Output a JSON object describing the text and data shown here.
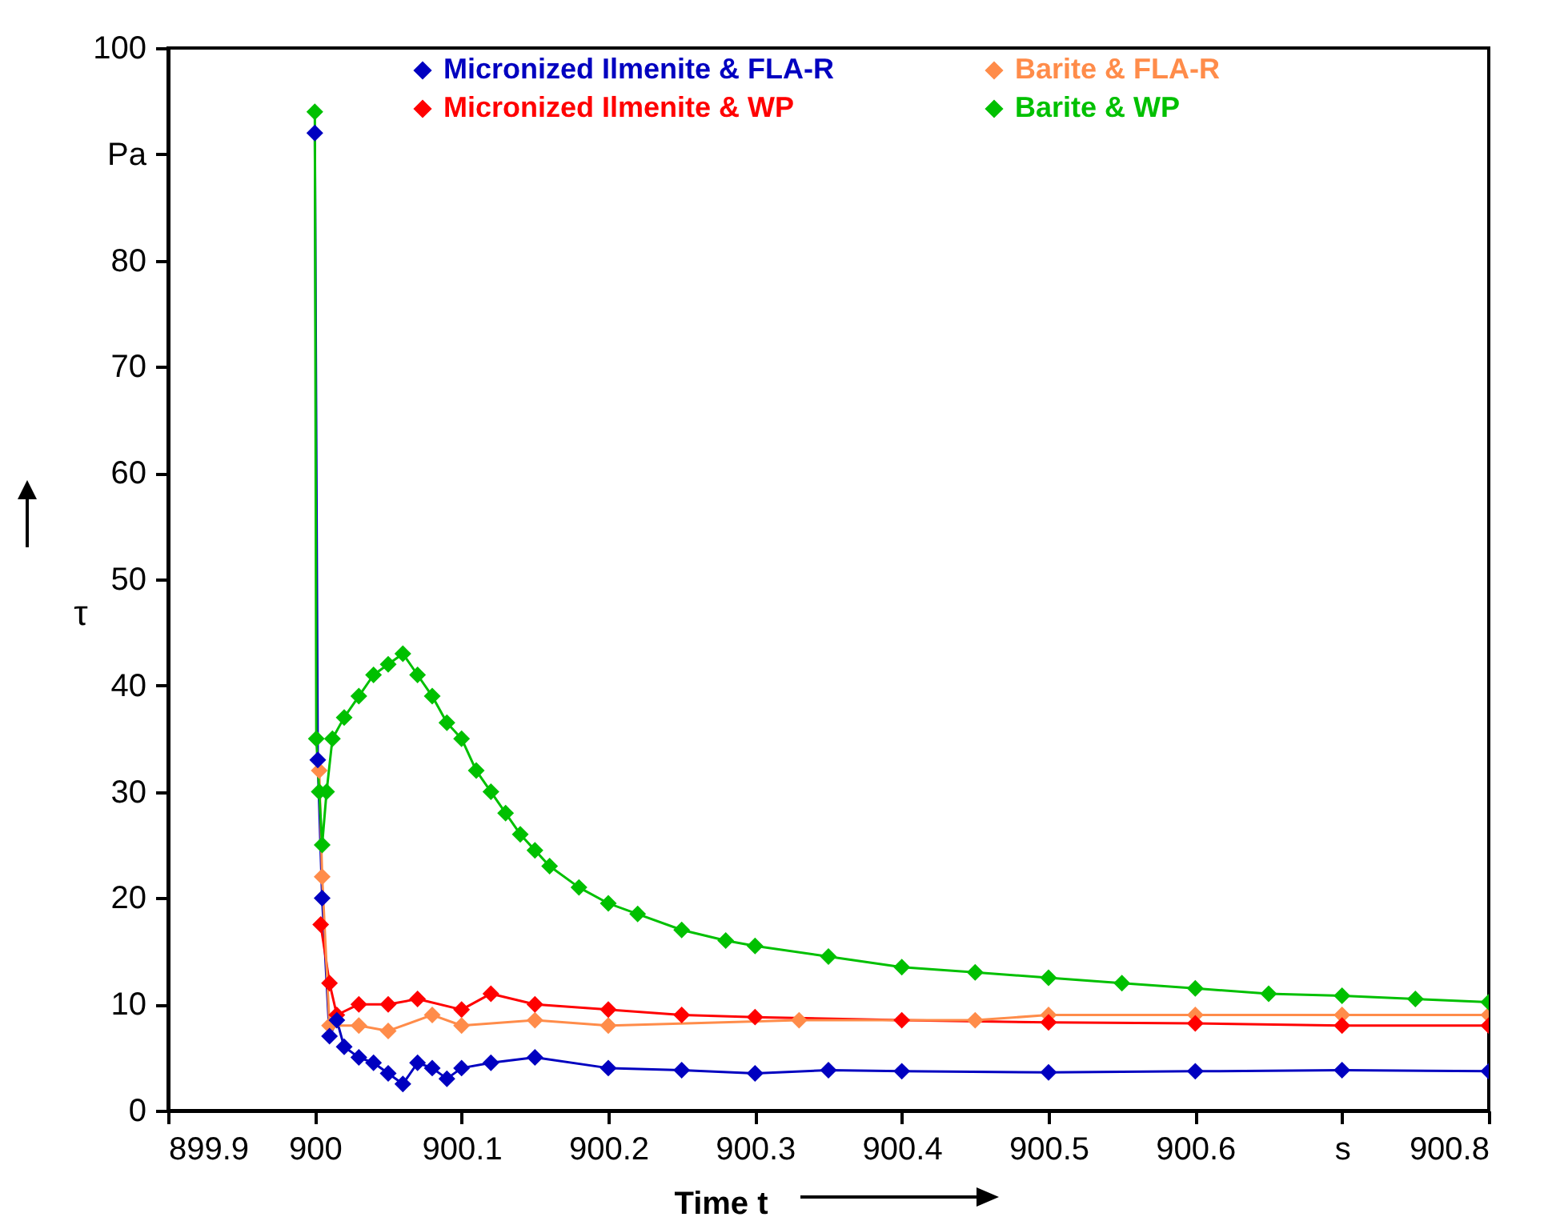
{
  "chart_data": {
    "type": "line",
    "xlabel": "Time t",
    "ylabel": "τ",
    "xlim": [
      899.9,
      900.8
    ],
    "ylim": [
      0,
      100
    ],
    "xticks": [
      899.9,
      900,
      900.1,
      900.2,
      900.3,
      900.4,
      900.5,
      900.6,
      {
        "value": 900.7,
        "label": "s"
      },
      900.8
    ],
    "yticks": [
      0,
      10,
      20,
      30,
      40,
      50,
      60,
      70,
      80,
      {
        "value": 90,
        "label": "Pa"
      },
      100
    ],
    "marker": "diamond",
    "legend": "top",
    "grid": false,
    "series": [
      {
        "name": "Micronized Ilmenite & FLA-R",
        "color": "#0000c0",
        "x": [
          900.0,
          900.002,
          900.005,
          900.01,
          900.015,
          900.02,
          900.03,
          900.04,
          900.05,
          900.06,
          900.07,
          900.08,
          900.09,
          900.1,
          900.12,
          900.15,
          900.2,
          900.25,
          900.3,
          900.35,
          900.4,
          900.5,
          900.6,
          900.7,
          900.8
        ],
        "values": [
          92,
          33,
          20,
          7,
          8.5,
          6,
          5,
          4.5,
          3.5,
          2.5,
          4.5,
          4,
          3,
          4,
          4.5,
          5,
          4,
          3.8,
          3.5,
          3.8,
          3.7,
          3.6,
          3.7,
          3.8,
          3.7
        ]
      },
      {
        "name": "Micronized Ilmenite & WP",
        "color": "#ff0000",
        "x": [
          900.004,
          900.01,
          900.015,
          900.03,
          900.05,
          900.07,
          900.1,
          900.12,
          900.15,
          900.2,
          900.25,
          900.3,
          900.4,
          900.5,
          900.6,
          900.7,
          900.8
        ],
        "values": [
          17.5,
          12,
          9,
          10,
          10,
          10.5,
          9.5,
          11,
          10,
          9.5,
          9,
          8.8,
          8.5,
          8.3,
          8.2,
          8,
          8
        ]
      },
      {
        "name": "Barite & FLA-R",
        "color": "#ff8c4a",
        "x": [
          900.003,
          900.005,
          900.01,
          900.03,
          900.05,
          900.08,
          900.1,
          900.15,
          900.2,
          900.33,
          900.45,
          900.5,
          900.6,
          900.7,
          900.8
        ],
        "values": [
          32,
          22,
          8,
          8,
          7.5,
          9,
          8,
          8.5,
          8,
          8.5,
          8.5,
          9,
          9,
          9,
          9
        ]
      },
      {
        "name": "Barite & WP",
        "color": "#00c000",
        "x": [
          900.0,
          900.001,
          900.003,
          900.005,
          900.008,
          900.012,
          900.02,
          900.03,
          900.04,
          900.05,
          900.06,
          900.07,
          900.08,
          900.09,
          900.1,
          900.11,
          900.12,
          900.13,
          900.14,
          900.15,
          900.16,
          900.18,
          900.2,
          900.22,
          900.25,
          900.28,
          900.3,
          900.35,
          900.4,
          900.45,
          900.5,
          900.55,
          900.6,
          900.65,
          900.7,
          900.75,
          900.8
        ],
        "values": [
          94,
          35,
          30,
          25,
          30,
          35,
          37,
          39,
          41,
          42,
          43,
          41,
          39,
          36.5,
          35,
          32,
          30,
          28,
          26,
          24.5,
          23,
          21,
          19.5,
          18.5,
          17,
          16,
          15.5,
          14.5,
          13.5,
          13,
          12.5,
          12,
          11.5,
          11,
          10.8,
          10.5,
          10.2
        ]
      }
    ]
  }
}
